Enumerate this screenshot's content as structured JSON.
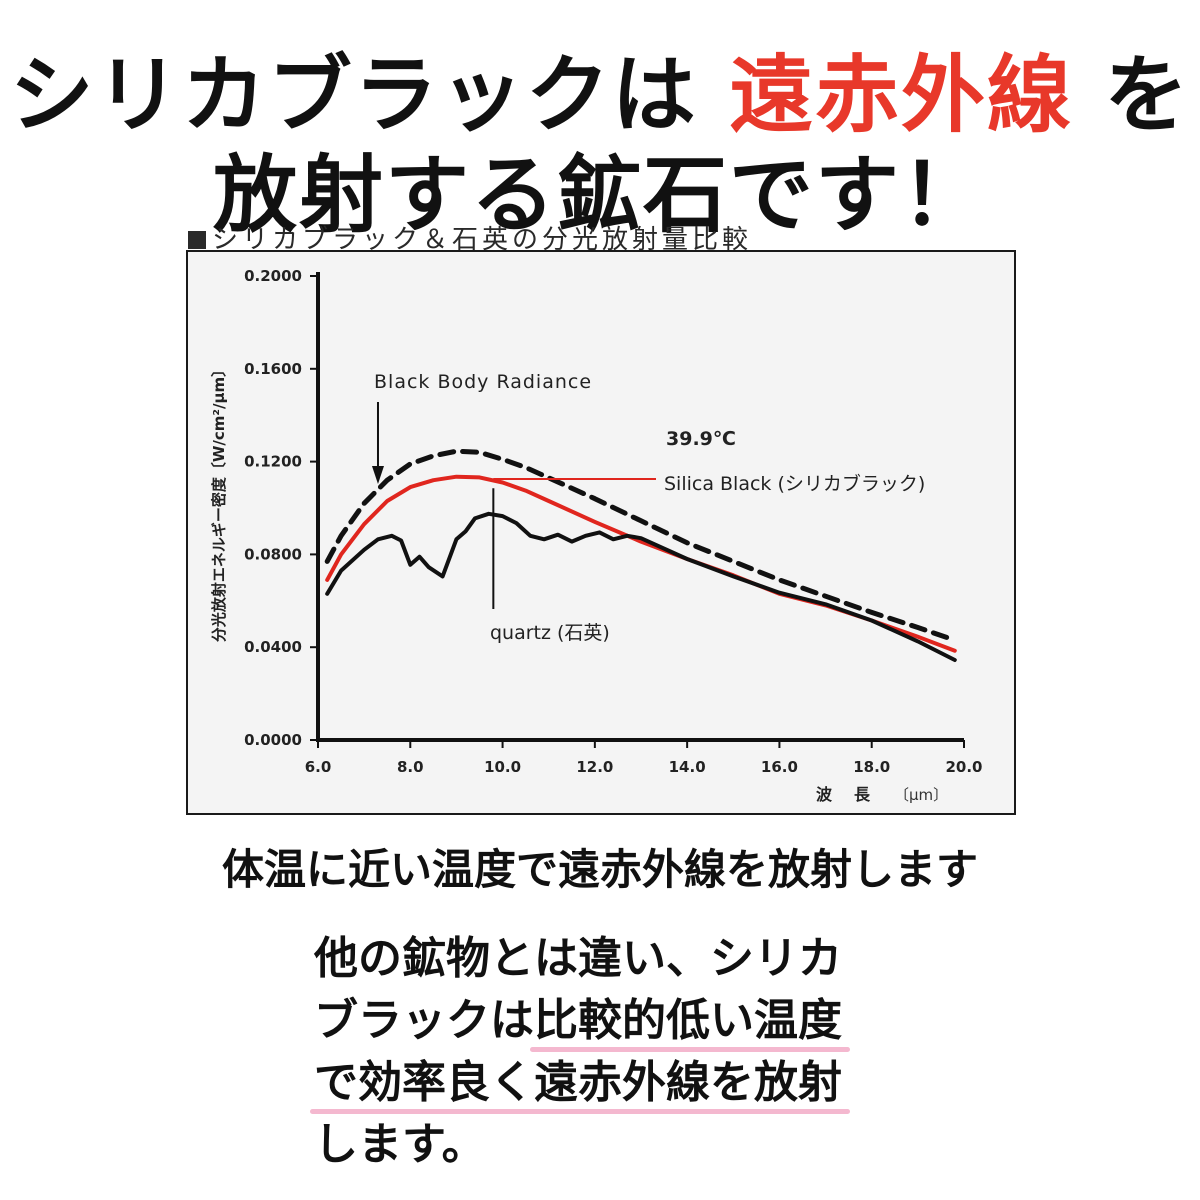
{
  "headline": {
    "line1_part1": "シリカブラックは",
    "line1_accent": "遠赤外線",
    "line1_part2": "を",
    "line2": "放射する鉱石です！",
    "accent_color": "#e8382a"
  },
  "chart_title": "シリカブラック＆石英の分光放射量比較",
  "chart_data": {
    "type": "line",
    "xlabel": "波　長",
    "xunit": "〔μm〕",
    "ylabel": "分光放射エネルギー密度〔W/cm²/μm〕",
    "xlim": [
      6.0,
      20.0
    ],
    "ylim": [
      0.0,
      0.2
    ],
    "x_ticks": [
      "6.0",
      "8.0",
      "10.0",
      "12.0",
      "14.0",
      "16.0",
      "18.0",
      "20.0"
    ],
    "y_ticks": [
      "0.0000",
      "0.0400",
      "0.0800",
      "0.1200",
      "0.1600",
      "0.2000"
    ],
    "grid": false,
    "series": [
      {
        "name": "Black Body Radiance",
        "style": "dashed",
        "color": "#111111",
        "x": [
          6.2,
          6.5,
          7.0,
          7.5,
          8.0,
          8.5,
          9.0,
          9.5,
          10.0,
          10.5,
          11.0,
          12.0,
          13.0,
          14.0,
          15.0,
          16.0,
          17.0,
          18.0,
          19.0,
          19.8
        ],
        "y": [
          0.077,
          0.088,
          0.102,
          0.112,
          0.119,
          0.1225,
          0.1245,
          0.124,
          0.121,
          0.1175,
          0.113,
          0.104,
          0.0945,
          0.085,
          0.077,
          0.069,
          0.062,
          0.055,
          0.0485,
          0.043
        ]
      },
      {
        "name": "Silica Black (シリカブラック)",
        "style": "solid",
        "color": "#e0261e",
        "x": [
          6.2,
          6.5,
          7.0,
          7.5,
          8.0,
          8.5,
          9.0,
          9.5,
          10.0,
          10.5,
          11.0,
          12.0,
          13.0,
          14.0,
          15.0,
          15.5,
          16.0,
          17.0,
          18.0,
          19.0,
          19.8
        ],
        "y": [
          0.069,
          0.08,
          0.093,
          0.103,
          0.109,
          0.112,
          0.1135,
          0.1132,
          0.111,
          0.1075,
          0.103,
          0.094,
          0.0855,
          0.078,
          0.071,
          0.067,
          0.063,
          0.058,
          0.0515,
          0.0445,
          0.0385
        ]
      },
      {
        "name": "quartz (石英)",
        "style": "solid",
        "color": "#111111",
        "x": [
          6.2,
          6.5,
          7.0,
          7.3,
          7.6,
          7.8,
          8.0,
          8.2,
          8.4,
          8.7,
          9.0,
          9.2,
          9.4,
          9.7,
          10.0,
          10.3,
          10.6,
          10.9,
          11.2,
          11.5,
          11.8,
          12.1,
          12.4,
          12.7,
          13.0,
          14.0,
          15.0,
          16.0,
          17.0,
          18.0,
          19.0,
          19.8
        ],
        "y": [
          0.063,
          0.073,
          0.082,
          0.0865,
          0.088,
          0.086,
          0.0755,
          0.079,
          0.0745,
          0.0705,
          0.0865,
          0.09,
          0.0955,
          0.0975,
          0.0965,
          0.0935,
          0.088,
          0.0865,
          0.0885,
          0.0855,
          0.088,
          0.0895,
          0.0865,
          0.088,
          0.087,
          0.078,
          0.0705,
          0.0635,
          0.0585,
          0.0515,
          0.0425,
          0.0345
        ]
      }
    ],
    "annotations": {
      "black_body": "Black Body Radiance",
      "temperature": "39.9℃",
      "silica": "Silica Black (シリカブラック)",
      "quartz": "quartz (石英)"
    }
  },
  "subheading": "体温に近い温度で遠赤外線を放射します",
  "body": {
    "line1": "他の鉱物とは違い、シリカ",
    "line2_a": "ブラックは",
    "line2_b": "比較的低い温度",
    "line3": "で効率良く遠赤外線を放射",
    "line4": "します。",
    "underline_color": "#f4b8cf"
  }
}
